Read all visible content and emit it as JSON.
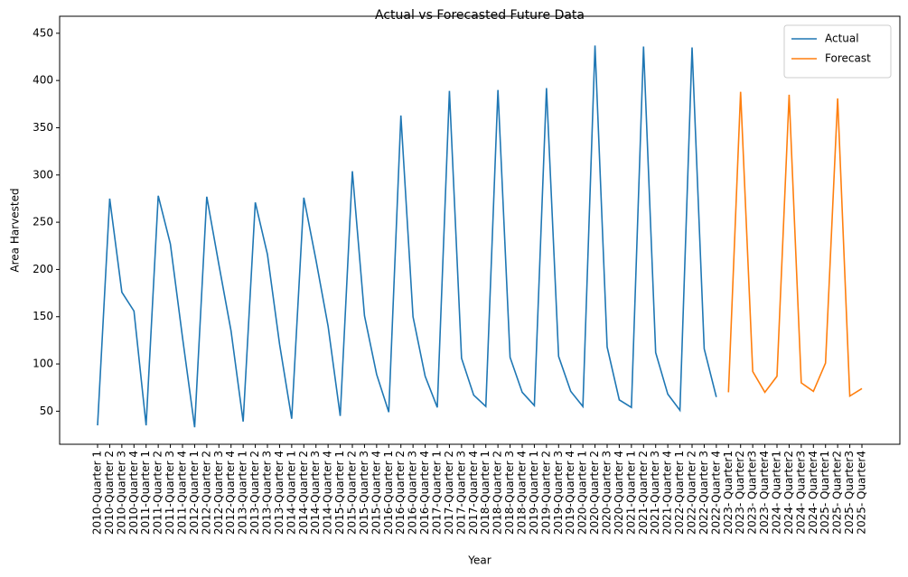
{
  "chart_data": {
    "type": "line",
    "title": "Actual vs Forecasted Future Data",
    "x_label": "Year",
    "y_label": "Area Harvested",
    "categories": [
      "2010-Quarter 1",
      "2010-Quarter 2",
      "2010-Quarter 3",
      "2010-Quarter 4",
      "2011-Quarter 1",
      "2011-Quarter 2",
      "2011-Quarter 3",
      "2011-Quarter 4",
      "2012-Quarter 1",
      "2012-Quarter 2",
      "2012-Quarter 3",
      "2012-Quarter 4",
      "2013-Quarter 1",
      "2013-Quarter 2",
      "2013-Quarter 3",
      "2013-Quarter 4",
      "2014-Quarter 1",
      "2014-Quarter 2",
      "2014-Quarter 3",
      "2014-Quarter 4",
      "2015-Quarter 1",
      "2015-Quarter 2",
      "2015-Quarter 3",
      "2015-Quarter 4",
      "2016-Quarter 1",
      "2016-Quarter 2",
      "2016-Quarter 3",
      "2016-Quarter 4",
      "2017-Quarter 1",
      "2017-Quarter 2",
      "2017-Quarter 3",
      "2017-Quarter 4",
      "2018-Quarter 1",
      "2018-Quarter 2",
      "2018-Quarter 3",
      "2018-Quarter 4",
      "2019-Quarter 1",
      "2019-Quarter 2",
      "2019-Quarter 3",
      "2019-Quarter 4",
      "2020-Quarter 1",
      "2020-Quarter 2",
      "2020-Quarter 3",
      "2020-Quarter 4",
      "2021-Quarter 1",
      "2021-Quarter 2",
      "2021-Quarter 3",
      "2021-Quarter 4",
      "2022-Quarter 1",
      "2022-Quarter 2",
      "2022-Quarter 3",
      "2022-Quarter 4",
      "2023- Quarter1",
      "2023- Quarter2",
      "2023- Quarter3",
      "2023- Quarter4",
      "2024- Quarter1",
      "2024- Quarter2",
      "2024- Quarter3",
      "2024- Quarter4",
      "2025- Quarter1",
      "2025- Quarter2",
      "2025- Quarter3",
      "2025- Quarter4"
    ],
    "series": [
      {
        "name": "Actual",
        "color": "#1f77b4",
        "values": [
          35,
          275,
          176,
          156,
          35,
          278,
          227,
          128,
          33,
          277,
          205,
          135,
          39,
          271,
          216,
          121,
          42,
          276,
          210,
          140,
          45,
          304,
          151,
          89,
          49,
          363,
          150,
          87,
          54,
          389,
          106,
          67,
          55,
          390,
          107,
          70,
          56,
          392,
          108,
          71,
          55,
          437,
          118,
          62,
          54,
          436,
          112,
          68,
          51,
          435,
          116,
          65,
          null,
          null,
          null,
          null,
          null,
          null,
          null,
          null,
          null,
          null,
          null,
          null
        ]
      },
      {
        "name": "Forecast",
        "color": "#ff7f0e",
        "values": [
          null,
          null,
          null,
          null,
          null,
          null,
          null,
          null,
          null,
          null,
          null,
          null,
          null,
          null,
          null,
          null,
          null,
          null,
          null,
          null,
          null,
          null,
          null,
          null,
          null,
          null,
          null,
          null,
          null,
          null,
          null,
          null,
          null,
          null,
          null,
          null,
          null,
          null,
          null,
          null,
          null,
          null,
          null,
          null,
          null,
          null,
          null,
          null,
          null,
          null,
          null,
          null,
          70,
          388,
          92,
          70,
          87,
          385,
          80,
          71,
          101,
          381,
          66,
          74
        ]
      }
    ],
    "ylim": [
      15,
      468
    ],
    "yticks": [
      50,
      100,
      150,
      200,
      250,
      300,
      350,
      400,
      450
    ],
    "legend": "upper right"
  }
}
